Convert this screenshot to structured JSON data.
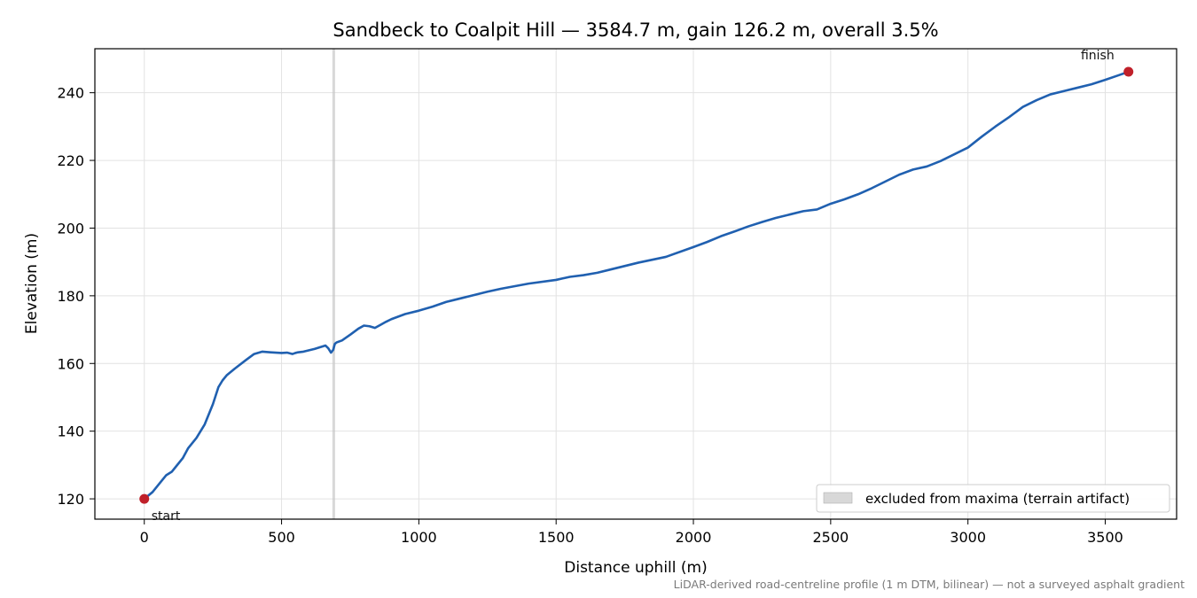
{
  "chart_data": {
    "type": "line",
    "title": "Sandbeck to Coalpit Hill — 3584.7 m, gain 126.2 m, overall 3.5%",
    "xlabel": "Distance uphill (m)",
    "ylabel": "Elevation (m)",
    "xlim": [
      -180,
      3760
    ],
    "ylim": [
      114,
      253
    ],
    "xticks": [
      0,
      500,
      1000,
      1500,
      2000,
      2500,
      3000,
      3500
    ],
    "yticks": [
      120,
      140,
      160,
      180,
      200,
      220,
      240
    ],
    "grid": true,
    "legend_position": "lower-right",
    "colors": {
      "line": "#2060b0",
      "marker": "#c0202a",
      "excluded": "#c8c8c8"
    },
    "series": [
      {
        "x": [
          0,
          30,
          60,
          80,
          100,
          120,
          140,
          160,
          190,
          220,
          250,
          270,
          285,
          300,
          330,
          370,
          400,
          430,
          460,
          480,
          500,
          520,
          540,
          550,
          560,
          580,
          620,
          660,
          670,
          680,
          688,
          694,
          700,
          720,
          750,
          780,
          800,
          820,
          840,
          860,
          880,
          900,
          950,
          1000,
          1050,
          1100,
          1150,
          1200,
          1250,
          1300,
          1400,
          1500,
          1550,
          1600,
          1650,
          1700,
          1800,
          1900,
          2000,
          2050,
          2100,
          2150,
          2200,
          2250,
          2300,
          2350,
          2400,
          2450,
          2500,
          2550,
          2600,
          2650,
          2700,
          2750,
          2800,
          2850,
          2900,
          2950,
          3000,
          3050,
          3100,
          3150,
          3200,
          3250,
          3300,
          3350,
          3400,
          3450,
          3500,
          3550,
          3584.7
        ],
        "y": [
          120,
          122,
          125,
          127,
          128,
          130,
          132,
          135,
          138,
          142,
          148,
          153,
          155,
          156.5,
          158.5,
          161,
          162.8,
          163.5,
          163.3,
          163.2,
          163.1,
          163.2,
          162.8,
          163.1,
          163.3,
          163.5,
          164.3,
          165.3,
          164.5,
          163.2,
          164,
          165.8,
          166.2,
          166.8,
          168.5,
          170.3,
          171.2,
          171.0,
          170.5,
          171.4,
          172.3,
          173.1,
          174.6,
          175.6,
          176.8,
          178.2,
          179.2,
          180.2,
          181.2,
          182.1,
          183.6,
          184.7,
          185.6,
          186.1,
          186.8,
          187.8,
          189.8,
          191.5,
          194.4,
          195.9,
          197.6,
          199.0,
          200.5,
          201.8,
          203.0,
          204.0,
          205.0,
          205.5,
          207.2,
          208.5,
          210.0,
          211.8,
          213.8,
          215.8,
          217.3,
          218.2,
          219.8,
          221.8,
          223.8,
          227.0,
          230.0,
          232.8,
          235.8,
          237.8,
          239.5,
          240.5,
          241.5,
          242.5,
          243.8,
          245.2,
          246.2
        ]
      }
    ],
    "excluded_region_x": 690,
    "markers": [
      {
        "label": "start",
        "x": 0,
        "y": 120
      },
      {
        "label": "finish",
        "x": 3584.7,
        "y": 246.2
      }
    ],
    "legend": [
      "excluded from maxima (terrain artifact)"
    ],
    "footnote": "LiDAR-derived road-centreline profile (1 m DTM, bilinear) — not a surveyed asphalt gradient"
  }
}
